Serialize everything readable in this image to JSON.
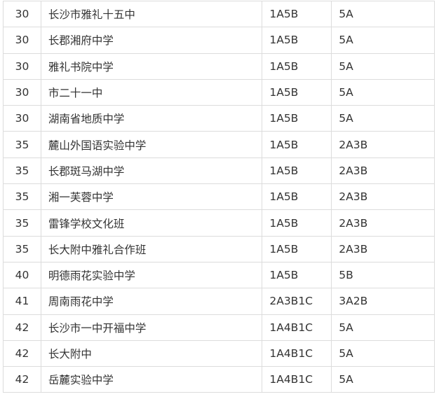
{
  "rows": [
    [
      "30",
      "长沙市雅礼十五中",
      "1A5B",
      "5A"
    ],
    [
      "30",
      "长郡湘府中学",
      "1A5B",
      "5A"
    ],
    [
      "30",
      "雅礼书院中学",
      "1A5B",
      "5A"
    ],
    [
      "30",
      "市二十一中",
      "1A5B",
      "5A"
    ],
    [
      "30",
      "湖南省地质中学",
      "1A5B",
      "5A"
    ],
    [
      "35",
      "麓山外国语实验中学",
      "1A5B",
      "2A3B"
    ],
    [
      "35",
      "长郡斑马湖中学",
      "1A5B",
      "2A3B"
    ],
    [
      "35",
      "湘一芙蓉中学",
      "1A5B",
      "2A3B"
    ],
    [
      "35",
      "雷锋学校文化班",
      "1A5B",
      "2A3B"
    ],
    [
      "35",
      "长大附中雅礼合作班",
      "1A5B",
      "2A3B"
    ],
    [
      "40",
      "明德雨花实验中学",
      "1A5B",
      "5B"
    ],
    [
      "41",
      "周南雨花中学",
      "2A3B1C",
      "3A2B"
    ],
    [
      "42",
      "长沙市一中开福中学",
      "1A4B1C",
      "5A"
    ],
    [
      "42",
      "长大附中",
      "1A4B1C",
      "5A"
    ],
    [
      "42",
      "岳麓实验中学",
      "1A4B1C",
      "5A"
    ]
  ]
}
